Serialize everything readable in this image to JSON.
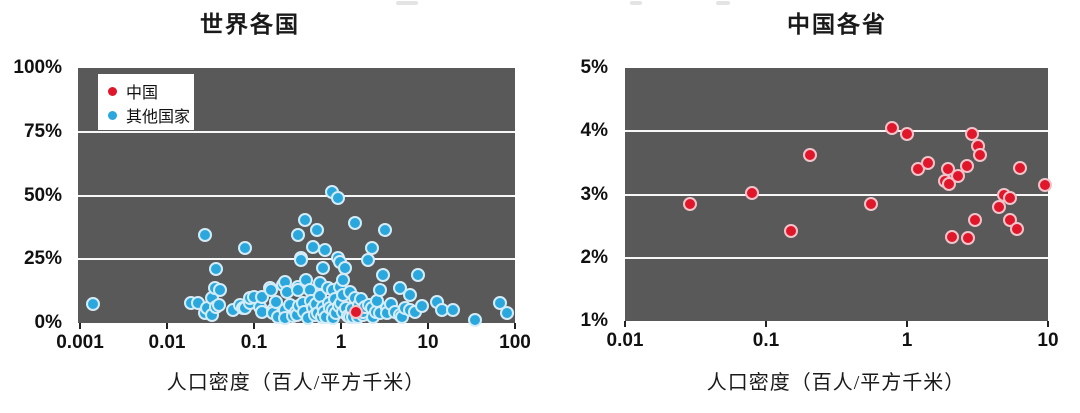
{
  "figure_note": "两幅散点图（人口密度对比）",
  "colors": {
    "plot_background": "#595959",
    "gridline": "#f7f7f7",
    "china_red": "#e0162b",
    "other_blue": "#2aa7dc",
    "outline_red": "#f3c3ca",
    "outline_blue": "#d4ecf8",
    "text": "#111111"
  },
  "chart_data": [
    {
      "type": "scatter",
      "title": "世界各国",
      "xlabel": "人口密度（百人/平方千米）",
      "x_scale": "log",
      "xlim": [
        0.001,
        100
      ],
      "ylim": [
        0,
        100
      ],
      "x_tick_labels": [
        "0.001",
        "0.01",
        "0.1",
        "1",
        "10",
        "100"
      ],
      "x_tick_values": [
        0.001,
        0.01,
        0.1,
        1,
        10,
        100
      ],
      "y_tick_labels": [
        "100%",
        "75%",
        "50%",
        "25%",
        "0%"
      ],
      "y_tick_values": [
        100,
        75,
        50,
        25,
        0
      ],
      "gridline_values": [
        75,
        50,
        25
      ],
      "legend": [
        {
          "label": "中国",
          "color_key": "china_red"
        },
        {
          "label": "其他国家",
          "color_key": "other_blue"
        }
      ],
      "series": [
        {
          "name": "其他国家",
          "color_key": "other_blue",
          "outline_key": "outline_blue",
          "points": [
            [
              0.0014,
              7.5
            ],
            [
              0.019,
              8
            ],
            [
              0.023,
              8
            ],
            [
              0.027,
              34.5
            ],
            [
              0.027,
              4
            ],
            [
              0.029,
              5.9
            ],
            [
              0.033,
              9.8
            ],
            [
              0.033,
              3.1
            ],
            [
              0.036,
              13.7
            ],
            [
              0.037,
              21
            ],
            [
              0.037,
              6.4
            ],
            [
              0.04,
              7
            ],
            [
              0.041,
              13
            ],
            [
              0.057,
              5.1
            ],
            [
              0.069,
              7.1
            ],
            [
              0.075,
              5.9
            ],
            [
              0.078,
              29.4
            ],
            [
              0.078,
              5.9
            ],
            [
              0.089,
              7.8
            ],
            [
              0.09,
              9.8
            ],
            [
              0.1,
              10.2
            ],
            [
              0.117,
              6.3
            ],
            [
              0.123,
              10.2
            ],
            [
              0.123,
              4.3
            ],
            [
              0.152,
              13.7
            ],
            [
              0.155,
              12.9
            ],
            [
              0.165,
              5.1
            ],
            [
              0.165,
              3.9
            ],
            [
              0.18,
              8.2
            ],
            [
              0.19,
              2.5
            ],
            [
              0.215,
              14.9
            ],
            [
              0.225,
              5.1
            ],
            [
              0.225,
              2
            ],
            [
              0.23,
              16
            ],
            [
              0.24,
              12.2
            ],
            [
              0.26,
              7.1
            ],
            [
              0.28,
              2.8
            ],
            [
              0.3,
              4.3
            ],
            [
              0.31,
              3.1
            ],
            [
              0.32,
              34.5
            ],
            [
              0.32,
              14.1
            ],
            [
              0.32,
              12.9
            ],
            [
              0.33,
              6.5
            ],
            [
              0.35,
              25.5
            ],
            [
              0.35,
              24.7
            ],
            [
              0.365,
              7.8
            ],
            [
              0.385,
              40.4
            ],
            [
              0.38,
              4.5
            ],
            [
              0.4,
              16.9
            ],
            [
              0.42,
              2
            ],
            [
              0.44,
              12.9
            ],
            [
              0.45,
              8.5
            ],
            [
              0.48,
              29.8
            ],
            [
              0.48,
              5.9
            ],
            [
              0.5,
              3
            ],
            [
              0.52,
              7.5
            ],
            [
              0.53,
              36.5
            ],
            [
              0.55,
              3.9
            ],
            [
              0.57,
              15.7
            ],
            [
              0.58,
              10.5
            ],
            [
              0.6,
              2.4
            ],
            [
              0.62,
              21.6
            ],
            [
              0.62,
              6.3
            ],
            [
              0.63,
              4.2
            ],
            [
              0.65,
              28.6
            ],
            [
              0.68,
              2.2
            ],
            [
              0.71,
              13.7
            ],
            [
              0.72,
              8
            ],
            [
              0.75,
              6
            ],
            [
              0.78,
              51.5
            ],
            [
              0.81,
              12.9
            ],
            [
              0.81,
              5.1
            ],
            [
              0.81,
              2
            ],
            [
              0.85,
              9.5
            ],
            [
              0.88,
              4
            ],
            [
              0.92,
              49
            ],
            [
              0.92,
              25.5
            ],
            [
              0.95,
              6.5
            ],
            [
              0.97,
              23.9
            ],
            [
              0.97,
              14.1
            ],
            [
              1.0,
              8
            ],
            [
              1.05,
              11
            ],
            [
              1.06,
              16.9
            ],
            [
              1.06,
              4.3
            ],
            [
              1.1,
              21.6
            ],
            [
              1.15,
              6
            ],
            [
              1.2,
              2.8
            ],
            [
              1.27,
              12.2
            ],
            [
              1.27,
              2.4
            ],
            [
              1.33,
              5.5
            ],
            [
              1.37,
              2.4
            ],
            [
              1.45,
              39.2
            ],
            [
              1.45,
              10
            ],
            [
              1.55,
              2.2
            ],
            [
              1.6,
              7
            ],
            [
              1.7,
              9.5
            ],
            [
              1.8,
              3.1
            ],
            [
              1.8,
              4.3
            ],
            [
              1.9,
              6.2
            ],
            [
              2.04,
              24.7
            ],
            [
              2.1,
              7
            ],
            [
              2.27,
              29.4
            ],
            [
              2.27,
              5.9
            ],
            [
              2.34,
              2.4
            ],
            [
              2.5,
              4.5
            ],
            [
              2.6,
              8.5
            ],
            [
              2.8,
              12.9
            ],
            [
              2.8,
              3.9
            ],
            [
              3.0,
              18.8
            ],
            [
              3.2,
              36.5
            ],
            [
              3.4,
              5.9
            ],
            [
              3.4,
              3.9
            ],
            [
              3.8,
              7.5
            ],
            [
              4.2,
              4.5
            ],
            [
              4.8,
              13.7
            ],
            [
              4.8,
              3.1
            ],
            [
              5.0,
              2.5
            ],
            [
              5.5,
              6
            ],
            [
              6.2,
              11
            ],
            [
              6.2,
              5.1
            ],
            [
              7.0,
              4.2
            ],
            [
              7.7,
              18.8
            ],
            [
              8.5,
              6.5
            ],
            [
              12.7,
              8.2
            ],
            [
              14.5,
              5.1
            ],
            [
              19.4,
              5.1
            ],
            [
              35,
              1.2
            ],
            [
              67,
              7.8
            ],
            [
              81,
              3.9
            ]
          ]
        },
        {
          "name": "中国",
          "color_key": "china_red",
          "outline_key": "outline_red",
          "points": [
            [
              1.5,
              4.5
            ]
          ]
        }
      ]
    },
    {
      "type": "scatter",
      "title": "中国各省",
      "xlabel": "人口密度（百人/平方千米）",
      "x_scale": "log",
      "xlim": [
        0.01,
        10
      ],
      "ylim": [
        1,
        5
      ],
      "x_tick_labels": [
        "0.01",
        "0.1",
        "1",
        "10"
      ],
      "x_tick_values": [
        0.01,
        0.1,
        1,
        10
      ],
      "y_tick_labels": [
        "5%",
        "4%",
        "3%",
        "2%",
        "1%"
      ],
      "y_tick_values": [
        5,
        4,
        3,
        2,
        1
      ],
      "gridline_values": [
        4,
        3,
        2
      ],
      "legend": [],
      "series": [
        {
          "name": "中国各省",
          "color_key": "china_red",
          "outline_key": "outline_red",
          "points": [
            [
              0.029,
              2.85
            ],
            [
              0.08,
              3.02
            ],
            [
              0.15,
              2.43
            ],
            [
              0.205,
              3.62
            ],
            [
              0.56,
              2.85
            ],
            [
              0.78,
              4.05
            ],
            [
              1.0,
              3.95
            ],
            [
              1.2,
              3.4
            ],
            [
              1.4,
              3.5
            ],
            [
              1.85,
              3.22
            ],
            [
              2.0,
              3.17
            ],
            [
              1.95,
              3.4
            ],
            [
              2.1,
              2.33
            ],
            [
              2.3,
              3.3
            ],
            [
              2.65,
              3.45
            ],
            [
              2.7,
              2.32
            ],
            [
              2.9,
              3.95
            ],
            [
              3.05,
              2.6
            ],
            [
              3.2,
              3.77
            ],
            [
              3.3,
              3.63
            ],
            [
              4.5,
              2.8
            ],
            [
              4.9,
              3.0
            ],
            [
              5.4,
              2.95
            ],
            [
              5.4,
              2.6
            ],
            [
              6.0,
              2.45
            ],
            [
              6.3,
              3.42
            ],
            [
              9.5,
              3.15
            ]
          ]
        }
      ]
    }
  ]
}
